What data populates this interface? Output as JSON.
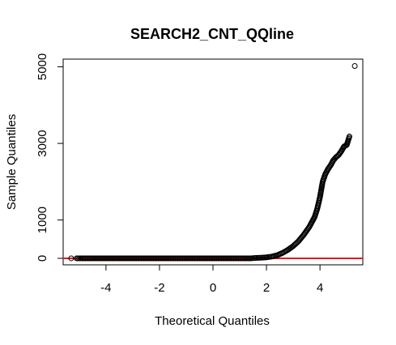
{
  "chart_data": {
    "type": "scatter",
    "title": "SEARCH2_CNT_QQline",
    "xlabel": "Theoretical Quantiles",
    "ylabel": "Sample Quantiles",
    "xlim": [
      -5.6,
      5.6
    ],
    "ylim": [
      -170,
      5200
    ],
    "x_ticks": [
      -4,
      -2,
      0,
      2,
      4
    ],
    "y_ticks": [
      0,
      1000,
      3000,
      5000
    ],
    "x_tick_labels": [
      "-4",
      "-2",
      "0",
      "2",
      "4"
    ],
    "y_tick_labels": [
      "0",
      "1000",
      "3000",
      "5000"
    ],
    "grid": false,
    "legend": "none",
    "reference_line": {
      "intercept": 0,
      "slope": 0,
      "color": "#e41a1c"
    },
    "point_color": "#000000",
    "points": [
      {
        "x": -5.3,
        "y": 0
      },
      {
        "x": -5.1,
        "y": 0
      },
      {
        "x": -4.9,
        "y": 0
      },
      {
        "x": -4.5,
        "y": 0
      },
      {
        "x": -4.0,
        "y": 0
      },
      {
        "x": -3.5,
        "y": 0
      },
      {
        "x": -3.0,
        "y": 0
      },
      {
        "x": -2.5,
        "y": 0
      },
      {
        "x": -2.0,
        "y": 0
      },
      {
        "x": -1.5,
        "y": 0
      },
      {
        "x": -1.0,
        "y": 0
      },
      {
        "x": -0.5,
        "y": 0
      },
      {
        "x": 0.0,
        "y": 0
      },
      {
        "x": 0.5,
        "y": 0
      },
      {
        "x": 1.0,
        "y": 0
      },
      {
        "x": 1.4,
        "y": 0
      },
      {
        "x": 1.6,
        "y": 10
      },
      {
        "x": 1.8,
        "y": 15
      },
      {
        "x": 2.0,
        "y": 25
      },
      {
        "x": 2.2,
        "y": 45
      },
      {
        "x": 2.4,
        "y": 80
      },
      {
        "x": 2.6,
        "y": 140
      },
      {
        "x": 2.8,
        "y": 220
      },
      {
        "x": 3.0,
        "y": 320
      },
      {
        "x": 3.2,
        "y": 450
      },
      {
        "x": 3.4,
        "y": 620
      },
      {
        "x": 3.6,
        "y": 820
      },
      {
        "x": 3.8,
        "y": 1080
      },
      {
        "x": 3.9,
        "y": 1300
      },
      {
        "x": 4.0,
        "y": 1600
      },
      {
        "x": 4.05,
        "y": 1800
      },
      {
        "x": 4.1,
        "y": 2000
      },
      {
        "x": 4.2,
        "y": 2200
      },
      {
        "x": 4.3,
        "y": 2330
      },
      {
        "x": 4.4,
        "y": 2430
      },
      {
        "x": 4.5,
        "y": 2560
      },
      {
        "x": 4.6,
        "y": 2640
      },
      {
        "x": 4.7,
        "y": 2700
      },
      {
        "x": 4.8,
        "y": 2800
      },
      {
        "x": 4.9,
        "y": 2920
      },
      {
        "x": 5.0,
        "y": 2960
      },
      {
        "x": 5.1,
        "y": 3180
      },
      {
        "x": 5.3,
        "y": 5020
      }
    ]
  }
}
